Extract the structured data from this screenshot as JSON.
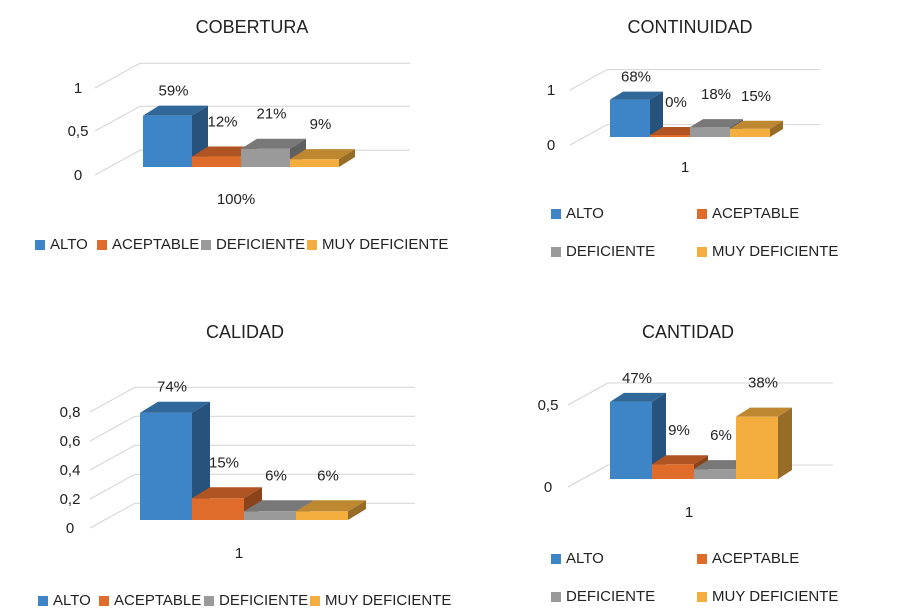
{
  "legend_labels": [
    "ALTO",
    "ACEPTABLE",
    "DEFICIENTE",
    "MUY DEFICIENTE"
  ],
  "colors": {
    "ALTO": "#3D85C6",
    "ACEPTABLE": "#E06C2C",
    "DEFICIENTE": "#9A9A9A",
    "MUY DEFICIENTE": "#F3AE3F"
  },
  "chart_data": [
    {
      "type": "bar",
      "title": "COBERTURA",
      "categories": [
        "100%"
      ],
      "series": [
        {
          "name": "ALTO",
          "values": [
            0.59
          ],
          "label": "59%"
        },
        {
          "name": "ACEPTABLE",
          "values": [
            0.12
          ],
          "label": "12%"
        },
        {
          "name": "DEFICIENTE",
          "values": [
            0.21
          ],
          "label": "21%"
        },
        {
          "name": "MUY DEFICIENTE",
          "values": [
            0.09
          ],
          "label": "9%"
        }
      ],
      "y_ticks": [
        "0",
        "0,5",
        "1"
      ],
      "ylim": [
        0,
        1
      ],
      "grid": true,
      "legend_position": "bottom"
    },
    {
      "type": "bar",
      "title": "CONTINUIDAD",
      "categories": [
        "1"
      ],
      "series": [
        {
          "name": "ALTO",
          "values": [
            0.68
          ],
          "label": "68%"
        },
        {
          "name": "ACEPTABLE",
          "values": [
            0
          ],
          "label": "0%"
        },
        {
          "name": "DEFICIENTE",
          "values": [
            0.18
          ],
          "label": "18%"
        },
        {
          "name": "MUY DEFICIENTE",
          "values": [
            0.15
          ],
          "label": "15%"
        }
      ],
      "y_ticks": [
        "0",
        "1"
      ],
      "ylim": [
        0,
        1
      ],
      "grid": true,
      "legend_position": "bottom"
    },
    {
      "type": "bar",
      "title": "CALIDAD",
      "categories": [
        "1"
      ],
      "series": [
        {
          "name": "ALTO",
          "values": [
            0.74
          ],
          "label": "74%"
        },
        {
          "name": "ACEPTABLE",
          "values": [
            0.15
          ],
          "label": "15%"
        },
        {
          "name": "DEFICIENTE",
          "values": [
            0.06
          ],
          "label": "6%"
        },
        {
          "name": "MUY DEFICIENTE",
          "values": [
            0.06
          ],
          "label": "6%"
        }
      ],
      "y_ticks": [
        "0",
        "0,2",
        "0,4",
        "0,6",
        "0,8"
      ],
      "ylim": [
        0,
        0.8
      ],
      "grid": true,
      "legend_position": "bottom"
    },
    {
      "type": "bar",
      "title": "CANTIDAD",
      "categories": [
        "1"
      ],
      "series": [
        {
          "name": "ALTO",
          "values": [
            0.47
          ],
          "label": "47%"
        },
        {
          "name": "ACEPTABLE",
          "values": [
            0.09
          ],
          "label": "9%"
        },
        {
          "name": "DEFICIENTE",
          "values": [
            0.06
          ],
          "label": "6%"
        },
        {
          "name": "MUY DEFICIENTE",
          "values": [
            0.38
          ],
          "label": "38%"
        }
      ],
      "y_ticks": [
        "0",
        "0,5"
      ],
      "ylim": [
        0,
        0.5
      ],
      "grid": true,
      "legend_position": "bottom"
    }
  ]
}
